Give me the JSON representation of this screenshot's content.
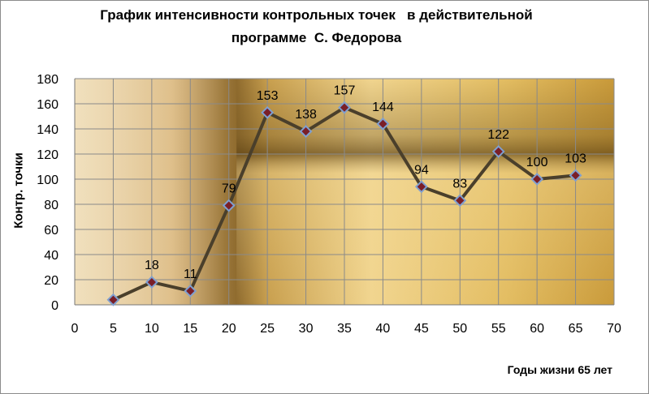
{
  "chart_data": {
    "type": "line",
    "title_lines": [
      "График интенсивности контрольных точек   в действительной",
      "программе  С. Федорова"
    ],
    "xlabel": "Годы жизни 65 лет",
    "ylabel": "Контр. точки",
    "xlim": [
      0,
      70
    ],
    "ylim": [
      0,
      180
    ],
    "x_ticks": [
      0,
      5,
      10,
      15,
      20,
      25,
      30,
      35,
      40,
      45,
      50,
      55,
      60,
      65,
      70
    ],
    "y_ticks": [
      0,
      20,
      40,
      60,
      80,
      100,
      120,
      140,
      160,
      180
    ],
    "grid": true,
    "series": [
      {
        "x": [
          5,
          10,
          15,
          20,
          25,
          30,
          35,
          40,
          45,
          50,
          55,
          60,
          65
        ],
        "values": [
          4,
          18,
          11,
          79,
          153,
          138,
          157,
          144,
          94,
          83,
          122,
          100,
          103
        ],
        "labels": [
          "",
          "18",
          "11",
          "79",
          "153",
          "138",
          "157",
          "144",
          "94",
          "83",
          "122",
          "100",
          "103"
        ],
        "line_color": "#4a3f2b",
        "marker_fill": "#7a1f28",
        "marker_stroke": "#7f9fd0"
      }
    ]
  }
}
